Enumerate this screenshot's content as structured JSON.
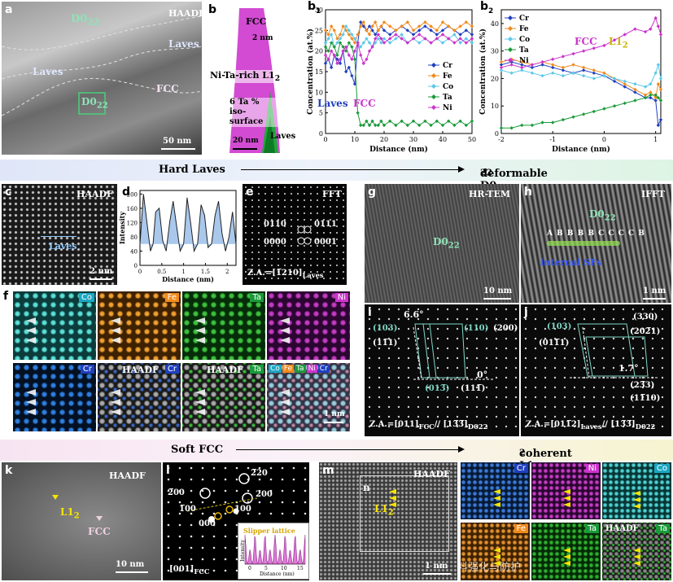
{
  "panels": {
    "a": {
      "letter": "a",
      "labels": [
        "D0",
        "22",
        "HAADF",
        "Laves",
        "Laves",
        "FCC",
        "D0",
        "22"
      ],
      "scale": "50 nm"
    },
    "b": {
      "letter": "b",
      "labels": [
        "FCC",
        "2 nm",
        "Ni-Ta-rich L1",
        "2",
        "6 Ta % iso-surface",
        "Laves"
      ],
      "scale": "20 nm"
    },
    "b1": {
      "letter": "b",
      "sub": "1",
      "annot_laves": "Laves",
      "annot_fcc": "FCC"
    },
    "b2": {
      "letter": "b",
      "sub": "2",
      "annot_fcc": "FCC",
      "annot_l12": "L1",
      "annot_l12_sub": "2"
    },
    "c": {
      "letter": "c",
      "title": "HAADF",
      "label": "Laves",
      "scale": "2 nm"
    },
    "d": {
      "letter": "d"
    },
    "e": {
      "letter": "e",
      "title": "FFT",
      "spots": [
        "0110",
        "0111",
        "0000",
        "0001"
      ],
      "za": "Z.A.=[1̅210]",
      "za_sub": "Laves"
    },
    "f": {
      "letter": "f",
      "channels": [
        "Co",
        "Fe",
        "Ta",
        "Ni",
        "Cr",
        "HAADF",
        "Cr",
        "HAADF",
        "Ta",
        "Co",
        "Fe",
        "Ta",
        "Ni",
        "Cr"
      ],
      "scale": "1 nm"
    },
    "g": {
      "letter": "g",
      "title": "HR-TEM",
      "label": "D0",
      "label_sub": "22",
      "scale": "10 nm"
    },
    "h": {
      "letter": "h",
      "title": "IFFT",
      "label": "D0",
      "label_sub": "22",
      "stack": "A B B B B C C C C B",
      "sf": "internal SFs",
      "scale": "1 nm"
    },
    "i": {
      "letter": "i",
      "angle1": "6.6°",
      "angle2": "0°",
      "spots": [
        "(103)",
        "(110)",
        "(200)",
        "(11̅1)",
        "(013̅)",
        "(111̅)"
      ],
      "za": "Z.A.=[011]",
      "za_sub1": "FCC",
      "za_mid": "// [13̅3̅]",
      "za_sub2": "D022"
    },
    "j": {
      "letter": "j",
      "angle": "1.7°",
      "spots": [
        "(103)",
        "(330)",
        "(011̅1)",
        "(202̅1)",
        "(23̅3)",
        "(11̅10)"
      ],
      "za": "Z.A.=[011̅2]",
      "za_sub1": "Laves",
      "za_mid": "// [13̅3̅]",
      "za_sub2": "D022"
    },
    "k": {
      "letter": "k",
      "title": "HAADF",
      "l12": "L1",
      "l12_sub": "2",
      "fcc": "FCC",
      "scale": "10 nm"
    },
    "l": {
      "letter": "l",
      "spots": [
        "2̅20",
        "2̅00",
        "1̅00",
        "100",
        "200",
        "000"
      ],
      "za": "[001]",
      "za_sub": "FCC",
      "inset_title": "Slipper lattice",
      "inset_ylabel": "Intensity",
      "inset_xlabel": "Distance (nm)",
      "inset_ticks": [
        "0",
        "5",
        "10",
        "15"
      ]
    },
    "m": {
      "letter": "m",
      "title": "HAADF",
      "n": "n",
      "l12": "L1",
      "l12_sub": "2",
      "scale": "1 nm"
    },
    "n": {
      "channels": [
        "Cr",
        "Ni",
        "Co",
        "Fe",
        "Ta",
        "HAADF",
        "Ta"
      ],
      "watermark": "公众号·材料强化与防护"
    }
  },
  "banners": {
    "top": {
      "left": "Hard Laves",
      "right": "deformable D0",
      "right_sub": "22"
    },
    "bottom": {
      "left": "Soft FCC",
      "right": "coherent L1",
      "right_sub": "2"
    }
  },
  "colors": {
    "Cr": "#1f3fbf",
    "Fe": "#f08a1c",
    "Co": "#5bc8e8",
    "Ta": "#1a9a3a",
    "Ni": "#cc33cc"
  },
  "chart_data": [
    {
      "type": "line",
      "panel": "b1",
      "xlabel": "Distance (nm)",
      "ylabel": "Concentration (at.%)",
      "xlim": [
        0,
        50
      ],
      "ylim": [
        0,
        30
      ],
      "xticks": [
        0,
        10,
        20,
        30,
        40,
        50
      ],
      "yticks": [
        0,
        5,
        10,
        15,
        20,
        25,
        30
      ],
      "legend": "right",
      "series": [
        {
          "name": "Cr",
          "color": "#1f3fbf",
          "x": [
            0,
            1,
            2,
            3,
            4,
            5,
            6,
            7,
            8,
            9,
            10,
            11,
            12,
            13,
            14,
            15,
            16,
            17,
            18,
            19,
            20,
            22,
            24,
            26,
            28,
            30,
            32,
            34,
            36,
            38,
            40,
            42,
            44,
            46,
            48,
            50
          ],
          "y": [
            17,
            18,
            16,
            19,
            18,
            17,
            20,
            15,
            16,
            14,
            12,
            22,
            27,
            26,
            25,
            26,
            25,
            24,
            25,
            26,
            25,
            24,
            25,
            26,
            25,
            24,
            25,
            26,
            25,
            24,
            25,
            26,
            25,
            24,
            25,
            24
          ]
        },
        {
          "name": "Fe",
          "color": "#f08a1c",
          "x": [
            0,
            1,
            2,
            3,
            4,
            5,
            6,
            7,
            8,
            9,
            10,
            11,
            12,
            13,
            14,
            15,
            16,
            17,
            18,
            19,
            20,
            22,
            24,
            26,
            28,
            30,
            32,
            34,
            36,
            38,
            40,
            42,
            44,
            46,
            48,
            50
          ],
          "y": [
            25,
            24,
            26,
            25,
            23,
            24,
            26,
            25,
            24,
            23,
            22,
            24,
            26,
            27,
            25,
            24,
            26,
            27,
            25,
            26,
            27,
            26,
            25,
            26,
            27,
            25,
            26,
            27,
            26,
            25,
            27,
            26,
            25,
            26,
            27,
            26
          ]
        },
        {
          "name": "Co",
          "color": "#5bc8e8",
          "x": [
            0,
            1,
            2,
            3,
            4,
            5,
            6,
            7,
            8,
            9,
            10,
            11,
            12,
            13,
            14,
            15,
            16,
            17,
            18,
            19,
            20,
            22,
            24,
            26,
            28,
            30,
            32,
            34,
            36,
            38,
            40,
            42,
            44,
            46,
            48,
            50
          ],
          "y": [
            22,
            23,
            24,
            21,
            22,
            23,
            24,
            26,
            25,
            24,
            23,
            22,
            21,
            22,
            23,
            22,
            21,
            22,
            23,
            22,
            23,
            22,
            23,
            24,
            22,
            23,
            22,
            23,
            22,
            23,
            22,
            23,
            24,
            22,
            23,
            22
          ]
        },
        {
          "name": "Ta",
          "color": "#1a9a3a",
          "x": [
            0,
            1,
            2,
            3,
            4,
            5,
            6,
            7,
            8,
            9,
            10,
            11,
            12,
            13,
            14,
            15,
            16,
            17,
            18,
            19,
            20,
            22,
            24,
            26,
            28,
            30,
            32,
            34,
            36,
            38,
            40,
            42,
            44,
            46,
            48,
            50
          ],
          "y": [
            21,
            20,
            22,
            21,
            19,
            22,
            21,
            20,
            22,
            21,
            18,
            5,
            2,
            2,
            3,
            2,
            3,
            2,
            2,
            3,
            2,
            3,
            2,
            3,
            2,
            3,
            2,
            3,
            2,
            3,
            2,
            3,
            2,
            3,
            2,
            3
          ]
        },
        {
          "name": "Ni",
          "color": "#cc33cc",
          "x": [
            0,
            1,
            2,
            3,
            4,
            5,
            6,
            7,
            8,
            9,
            10,
            11,
            12,
            13,
            14,
            15,
            16,
            17,
            18,
            19,
            20,
            22,
            24,
            26,
            28,
            30,
            32,
            34,
            36,
            38,
            40,
            42,
            44,
            46,
            48,
            50
          ],
          "y": [
            19,
            18,
            20,
            19,
            17,
            18,
            20,
            21,
            19,
            18,
            20,
            22,
            19,
            17,
            18,
            20,
            21,
            23,
            24,
            23,
            22,
            23,
            24,
            23,
            22,
            23,
            24,
            23,
            22,
            23,
            24,
            23,
            22,
            23,
            22,
            23
          ]
        }
      ]
    },
    {
      "type": "line",
      "panel": "b2",
      "xlabel": "Distance (nm)",
      "ylabel": "Concentration (at.%)",
      "xlim": [
        -2,
        1.1
      ],
      "ylim": [
        0,
        45
      ],
      "xticks": [
        -2,
        -1,
        0,
        1
      ],
      "yticks": [
        0,
        10,
        20,
        30,
        40
      ],
      "legend": "top-left",
      "series": [
        {
          "name": "Cr",
          "color": "#1f3fbf",
          "x": [
            -2,
            -1.8,
            -1.6,
            -1.4,
            -1.2,
            -1,
            -0.8,
            -0.6,
            -0.4,
            -0.2,
            0,
            0.2,
            0.4,
            0.6,
            0.8,
            0.9,
            1,
            1.05,
            1.1
          ],
          "y": [
            25,
            26,
            25,
            24,
            25,
            24,
            23,
            22,
            23,
            22,
            21,
            19,
            17,
            15,
            13,
            13,
            12,
            3,
            5
          ]
        },
        {
          "name": "Fe",
          "color": "#f08a1c",
          "x": [
            -2,
            -1.8,
            -1.6,
            -1.4,
            -1.2,
            -1,
            -0.8,
            -0.6,
            -0.4,
            -0.2,
            0,
            0.2,
            0.4,
            0.6,
            0.8,
            0.9,
            1,
            1.05,
            1.1
          ],
          "y": [
            26,
            27,
            26,
            25,
            26,
            25,
            24,
            25,
            24,
            23,
            22,
            20,
            18,
            16,
            14,
            15,
            13,
            18,
            16
          ]
        },
        {
          "name": "Co",
          "color": "#5bc8e8",
          "x": [
            -2,
            -1.8,
            -1.6,
            -1.4,
            -1.2,
            -1,
            -0.8,
            -0.6,
            -0.4,
            -0.2,
            0,
            0.2,
            0.4,
            0.6,
            0.8,
            0.9,
            1,
            1.05,
            1.1
          ],
          "y": [
            23,
            22,
            23,
            22,
            21,
            22,
            21,
            22,
            21,
            20,
            21,
            20,
            19,
            18,
            17,
            18,
            22,
            25,
            20
          ]
        },
        {
          "name": "Ta",
          "color": "#1a9a3a",
          "x": [
            -2,
            -1.8,
            -1.6,
            -1.4,
            -1.2,
            -1,
            -0.8,
            -0.6,
            -0.4,
            -0.2,
            0,
            0.2,
            0.4,
            0.6,
            0.8,
            0.9,
            1,
            1.05,
            1.1
          ],
          "y": [
            2,
            2,
            3,
            3,
            4,
            4,
            5,
            6,
            7,
            8,
            9,
            10,
            11,
            12,
            13,
            14,
            14,
            13,
            12
          ]
        },
        {
          "name": "Ni",
          "color": "#cc33cc",
          "x": [
            -2,
            -1.8,
            -1.6,
            -1.4,
            -1.2,
            -1,
            -0.8,
            -0.6,
            -0.4,
            -0.2,
            0,
            0.2,
            0.4,
            0.6,
            0.8,
            0.9,
            1,
            1.05,
            1.1
          ],
          "y": [
            24,
            25,
            24,
            25,
            26,
            27,
            28,
            29,
            30,
            31,
            32,
            34,
            36,
            38,
            37,
            38,
            42,
            39,
            36
          ]
        }
      ]
    },
    {
      "type": "line",
      "panel": "d",
      "xlabel": "Distance (nm)",
      "ylabel": "Intensity",
      "xlim": [
        0,
        2.2
      ],
      "ylim": [
        0,
        210
      ],
      "xticks": [
        0,
        0.5,
        1.0,
        1.5,
        2.0
      ],
      "yticks": [
        0,
        40,
        80,
        120,
        160,
        200
      ],
      "series": [
        {
          "name": "",
          "color": "#222222",
          "x": [
            0,
            0.08,
            0.16,
            0.24,
            0.3,
            0.36,
            0.44,
            0.52,
            0.6,
            0.68,
            0.76,
            0.84,
            0.92,
            1.0,
            1.08,
            1.16,
            1.24,
            1.32,
            1.4,
            1.48,
            1.56,
            1.64,
            1.72,
            1.8,
            1.88,
            1.96,
            2.04,
            2.12,
            2.2
          ],
          "y": [
            60,
            200,
            120,
            40,
            60,
            150,
            160,
            70,
            40,
            120,
            180,
            110,
            40,
            60,
            190,
            120,
            40,
            60,
            170,
            140,
            50,
            60,
            140,
            180,
            90,
            40,
            80,
            150,
            60
          ]
        }
      ]
    }
  ]
}
